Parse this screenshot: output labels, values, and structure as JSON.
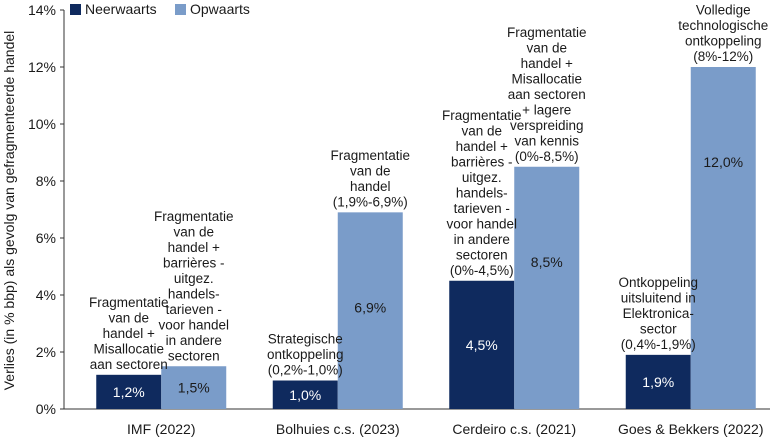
{
  "chart_data": {
    "type": "bar",
    "ylabel": "Verlies (in % bbp) als gevolg van gefragmenteerde handel",
    "xlabel": "",
    "ylim": [
      0,
      14
    ],
    "yticks": [
      0,
      2,
      4,
      6,
      8,
      10,
      12,
      14
    ],
    "ytick_labels": [
      "0%",
      "2%",
      "4%",
      "6%",
      "8%",
      "10%",
      "12%",
      "14%"
    ],
    "grid": false,
    "legend_position": "top-left",
    "categories": [
      "IMF (2022)",
      "Bolhuies c.s. (2023)",
      "Cerdeiro c.s. (2021)",
      "Goes & Bekkers (2022)"
    ],
    "series": [
      {
        "name": "Neerwaarts",
        "color": "#0f2a5e",
        "values": [
          1.2,
          1.0,
          4.5,
          1.9
        ],
        "value_labels": [
          "1,2%",
          "1,0%",
          "4,5%",
          "1,9%"
        ],
        "annotations": [
          [
            "Fragmentatie",
            "van de",
            "handel +",
            "Misallocatie",
            "aan sectoren"
          ],
          [
            "Strategische",
            "ontkoppeling",
            "(0,2%-1,0%)"
          ],
          [
            "Fragmentatie",
            "van de",
            "handel +",
            "barrières -",
            "uitgez.",
            "handels-",
            "tarieven -",
            "voor handel",
            "in andere",
            "sectoren",
            "(0%-4,5%)"
          ],
          [
            "Ontkoppeling",
            "uitsluitend in",
            "Elektronica-",
            "sector",
            "(0,4%-1,9%)"
          ]
        ]
      },
      {
        "name": "Opwaarts",
        "color": "#7a9cc9",
        "values": [
          1.5,
          6.9,
          8.5,
          12.0
        ],
        "value_labels": [
          "1,5%",
          "6,9%",
          "8,5%",
          "12,0%"
        ],
        "annotations": [
          [
            "Fragmentatie",
            "van de",
            "handel +",
            "barrières -",
            "uitgez.",
            "handels-",
            "tarieven -",
            "voor handel",
            "in andere",
            "sectoren"
          ],
          [
            "Fragmentatie",
            "van de",
            "handel",
            "(1,9%-6,9%)"
          ],
          [
            "Fragmentatie",
            "van de",
            "handel +",
            "Misallocatie",
            "aan sectoren",
            "+ lagere",
            "verspreiding",
            "van kennis",
            "(0%-8,5%)"
          ],
          [
            "Volledige",
            "technologische",
            "ontkoppeling",
            "(8%-12%)"
          ]
        ]
      }
    ]
  }
}
